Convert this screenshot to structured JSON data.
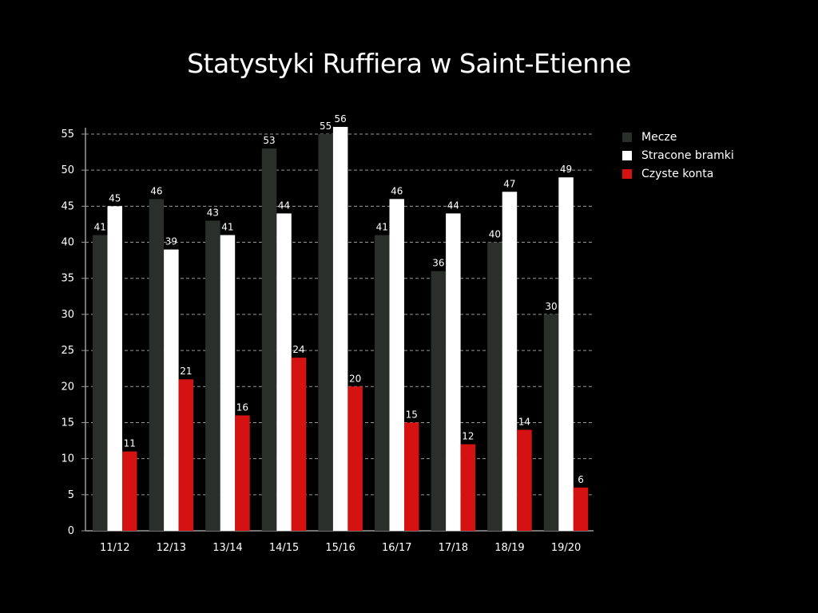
{
  "colors": {
    "background": "#000000",
    "mecze": "#2b2f2b",
    "stracone": "#ffffff",
    "czyste": "#d51212",
    "text": "#ffffff",
    "grid": "#9a9a9a"
  },
  "chart_data": {
    "type": "bar",
    "title": "Statystyki Ruffiera w Saint-Etienne",
    "xlabel": "",
    "ylabel": "",
    "ylim": [
      0,
      55
    ],
    "yticks": [
      "0",
      "5",
      "10",
      "15",
      "20",
      "25",
      "30",
      "35",
      "40",
      "45",
      "50",
      "55"
    ],
    "grid": true,
    "legend_position": "right",
    "categories": [
      "11/12",
      "12/13",
      "13/14",
      "14/15",
      "15/16",
      "16/17",
      "17/18",
      "18/19",
      "19/20"
    ],
    "series": [
      {
        "name": "Mecze",
        "color": "#2b2f2b",
        "values": [
          41,
          46,
          43,
          53,
          55,
          41,
          36,
          40,
          30
        ]
      },
      {
        "name": "Stracone bramki",
        "color": "#ffffff",
        "values": [
          45,
          39,
          41,
          44,
          56,
          46,
          44,
          47,
          49
        ]
      },
      {
        "name": "Czyste konta",
        "color": "#d51212",
        "values": [
          11,
          21,
          16,
          24,
          20,
          15,
          12,
          14,
          6
        ]
      }
    ]
  }
}
